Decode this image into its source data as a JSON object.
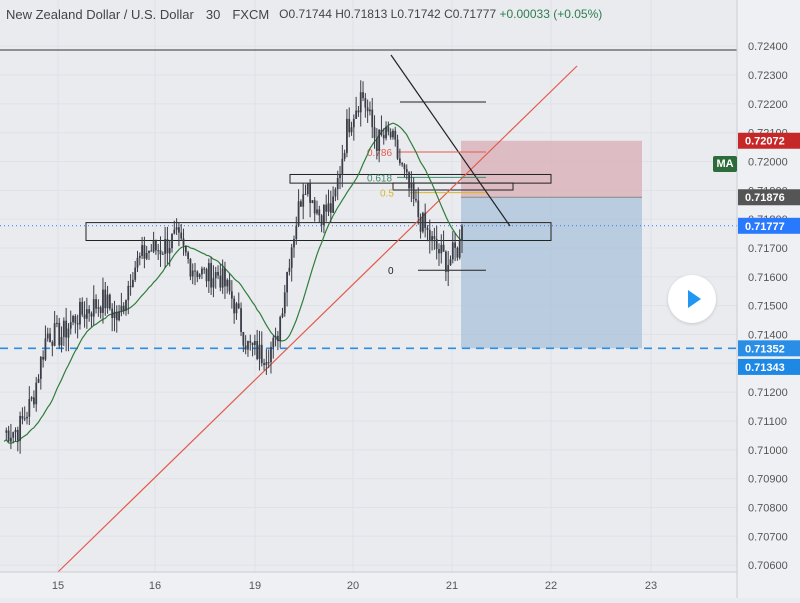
{
  "header": {
    "symbol_title": "New Zealand Dollar / U.S. Dollar",
    "interval": "30",
    "exchange": "FXCM",
    "open_label": "O",
    "open": "0.71744",
    "high_label": "H",
    "high": "0.71813",
    "low_label": "L",
    "low": "0.71742",
    "close_label": "C",
    "close": "0.71777",
    "change": "+0.00033 (+0.05%)"
  },
  "indicator": {
    "ma_label": "MA"
  },
  "price_labels": {
    "stop": "0.72072",
    "entry": "0.71876",
    "last": "0.71777",
    "target": "0.71352",
    "target2": "0.71343"
  },
  "fib_labels": {
    "f786": "0.786",
    "f618": "0.618",
    "f5": "0.5",
    "f0": "0"
  },
  "colors": {
    "background": "#e9ebef",
    "candle": "#3a3d46",
    "ma": "#2f7d3a",
    "trendline": "#e35b4b",
    "stop_zone": "#d8aeb4",
    "target_zone": "#a9c1da",
    "dashed_level": "#2a8ee6",
    "last_price": "#2979ff",
    "stop_price": "#c62828",
    "entry_price": "#555555"
  },
  "chart_data": {
    "type": "candlestick",
    "symbol": "New Zealand Dollar / U.S. Dollar",
    "timeframe": "30",
    "x_ticks": [
      "15",
      "16",
      "19",
      "20",
      "21",
      "22",
      "23"
    ],
    "y_ticks": [
      "0.72400",
      "0.72300",
      "0.72200",
      "0.72100",
      "0.72000",
      "0.71900",
      "0.71800",
      "0.71700",
      "0.71600",
      "0.71500",
      "0.71400",
      "0.71300",
      "0.71200",
      "0.71100",
      "0.71000",
      "0.70900",
      "0.70800",
      "0.70700",
      "0.70600"
    ],
    "ylim": [
      0.7059,
      0.7247
    ],
    "price_path": [
      [
        0.7099,
        0.7113
      ],
      [
        0.7104,
        0.711
      ],
      [
        0.7108,
        0.7127
      ],
      [
        0.7131,
        0.715
      ],
      [
        0.7141,
        0.7138
      ],
      [
        0.7148,
        0.7144
      ],
      [
        0.7143,
        0.7155
      ],
      [
        0.7161,
        0.7143
      ],
      [
        0.7138,
        0.7152
      ],
      [
        0.716,
        0.7166
      ],
      [
        0.7178,
        0.716
      ],
      [
        0.7166,
        0.7174
      ],
      [
        0.7177,
        0.717
      ],
      [
        0.7166,
        0.7163
      ],
      [
        0.7155,
        0.7166
      ],
      [
        0.7152,
        0.717
      ],
      [
        0.7158,
        0.7146
      ],
      [
        0.714,
        0.7132
      ],
      [
        0.7141,
        0.7125
      ],
      [
        0.713,
        0.7143
      ],
      [
        0.716,
        0.7178
      ],
      [
        0.719,
        0.7198
      ],
      [
        0.7186,
        0.7178
      ],
      [
        0.7178,
        0.719
      ],
      [
        0.7207,
        0.7218
      ],
      [
        0.722,
        0.7228
      ],
      [
        0.72,
        0.7214
      ],
      [
        0.7215,
        0.7203
      ],
      [
        0.7198,
        0.7191
      ],
      [
        0.7182,
        0.7179
      ],
      [
        0.7174,
        0.7168
      ],
      [
        0.7167,
        0.7163
      ],
      [
        0.7166,
        0.7178
      ]
    ],
    "levels": {
      "last_price": 0.71777,
      "entry": 0.71876,
      "stop": 0.72072,
      "target": 0.71352,
      "target2": 0.71343
    },
    "fibonacci": [
      {
        "label": "0.786",
        "price": 0.72033
      },
      {
        "label": "0.618",
        "price": 0.71945
      },
      {
        "label": "0.5",
        "price": 0.71892
      },
      {
        "label": "0",
        "price": 0.71623
      }
    ],
    "zones": [
      {
        "top": 0.71955,
        "bottom": 0.71925
      },
      {
        "top": 0.71788,
        "bottom": 0.71726
      }
    ],
    "grid": true
  }
}
